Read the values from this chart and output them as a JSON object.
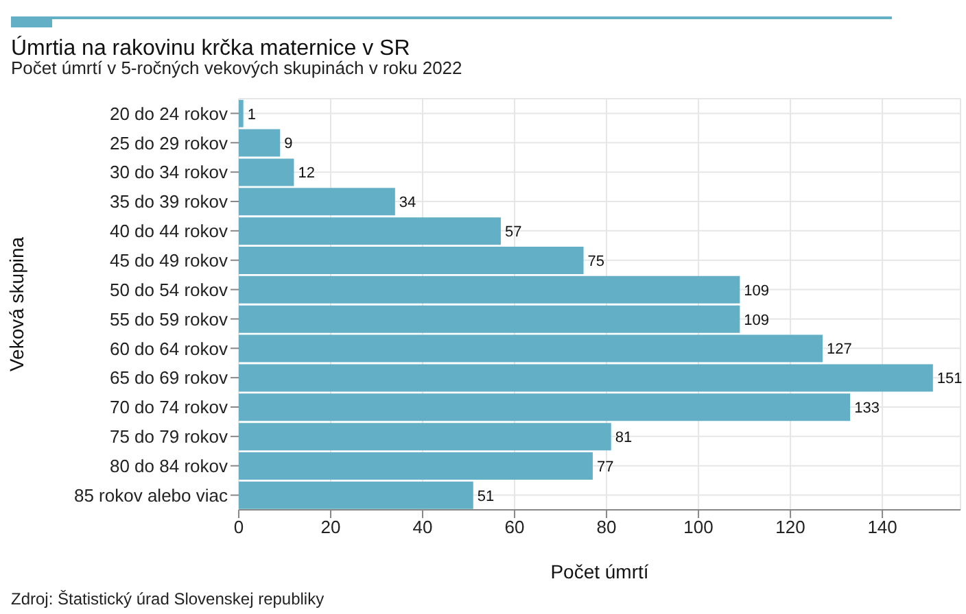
{
  "chart_data": {
    "type": "bar",
    "orientation": "horizontal",
    "title": "Úmrtia na rakovinu krčka maternice v SR",
    "subtitle": "Počet úmrtí v 5-ročných vekových skupinách v roku 2022",
    "xlabel": "Počet úmrtí",
    "ylabel": "Veková skupina",
    "categories": [
      "20 do 24 rokov",
      "25 do 29 rokov",
      "30 do 34 rokov",
      "35 do 39 rokov",
      "40 do 44 rokov",
      "45 do 49 rokov",
      "50 do 54 rokov",
      "55 do 59 rokov",
      "60 do 64 rokov",
      "65 do 69 rokov",
      "70 do 74 rokov",
      "75 do 79 rokov",
      "80 do 84 rokov",
      "85 rokov alebo viac"
    ],
    "values": [
      1,
      9,
      12,
      34,
      57,
      75,
      109,
      109,
      127,
      151,
      133,
      81,
      77,
      51
    ],
    "color": "#63afc5",
    "data_labels": true,
    "xlim": [
      0,
      157
    ],
    "xticks": [
      0,
      20,
      40,
      60,
      80,
      100,
      120,
      140
    ],
    "grid": true,
    "annotations": [
      "Zdroj: Štatistický úrad Slovenskej republiky"
    ]
  }
}
